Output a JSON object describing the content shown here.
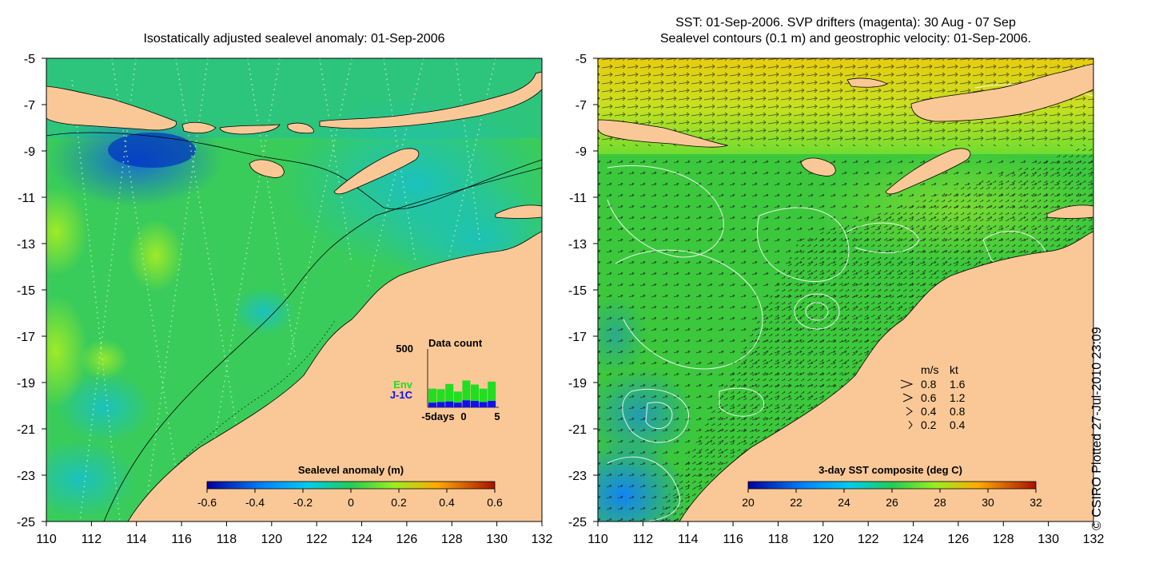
{
  "left_panel": {
    "title": "Isostatically adjusted sealevel anomaly: 01-Sep-2006",
    "x_ticks": [
      "110",
      "112",
      "114",
      "116",
      "118",
      "120",
      "122",
      "124",
      "126",
      "128",
      "130",
      "132"
    ],
    "y_ticks": [
      "-5",
      "-7",
      "-9",
      "-11",
      "-13",
      "-15",
      "-17",
      "-19",
      "-21",
      "-23",
      "-25"
    ],
    "colorbar": {
      "title": "Sealevel anomaly (m)",
      "ticks": [
        "-0.6",
        "-0.4",
        "-0.2",
        "0",
        "0.2",
        "0.4",
        "0.6"
      ]
    },
    "inset": {
      "title": "Data count",
      "y_max": "500",
      "x_ticks": [
        "-5days",
        "0",
        "5"
      ],
      "legend": {
        "env": "Env",
        "j1c": "J-1C"
      },
      "env_color": "#22dd22",
      "j1c_color": "#1010ee",
      "counts": [
        {
          "env": 120,
          "j1c": 40
        },
        {
          "env": 110,
          "j1c": 45
        },
        {
          "env": 150,
          "j1c": 50
        },
        {
          "env": 95,
          "j1c": 40
        },
        {
          "env": 170,
          "j1c": 60
        },
        {
          "env": 140,
          "j1c": 55
        },
        {
          "env": 115,
          "j1c": 45
        },
        {
          "env": 165,
          "j1c": 55
        }
      ]
    }
  },
  "right_panel": {
    "title_line1": "SST: 01-Sep-2006. SVP drifters (magenta): 30 Aug - 07 Sep",
    "title_line2": "Sealevel contours (0.1 m) and geostrophic velocity: 01-Sep-2006.",
    "x_ticks": [
      "110",
      "112",
      "114",
      "116",
      "118",
      "120",
      "122",
      "124",
      "126",
      "128",
      "130",
      "132"
    ],
    "y_ticks": [
      "-5",
      "-7",
      "-9",
      "-11",
      "-13",
      "-15",
      "-17",
      "-19",
      "-21",
      "-23",
      "-25"
    ],
    "colorbar": {
      "title": "3-day SST composite (deg C)",
      "ticks": [
        "20",
        "22",
        "24",
        "26",
        "28",
        "30",
        "32"
      ]
    },
    "velocity_legend": {
      "header_ms": "m/s",
      "header_kt": "kt",
      "rows": [
        {
          "ms": "0.8",
          "kt": "1.6"
        },
        {
          "ms": "0.6",
          "kt": "1.2"
        },
        {
          "ms": "0.4",
          "kt": "0.8"
        },
        {
          "ms": "0.2",
          "kt": "0.4"
        }
      ]
    }
  },
  "credit": "© CSIRO Plotted 27-Jul-2010 23:09",
  "colors": {
    "land": "#fac896",
    "ocean_mid": "#22cc66",
    "ocean_teal": "#10c8b0",
    "sst_warm": "#e0e020"
  }
}
